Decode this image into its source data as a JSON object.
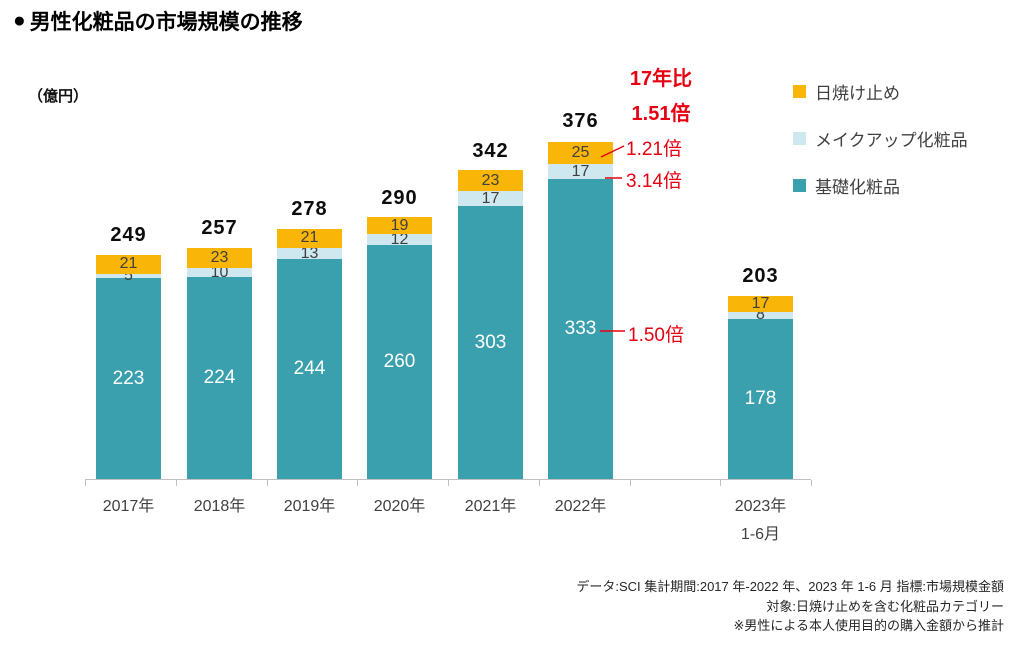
{
  "header": {
    "bullet": "●",
    "title": "男性化粧品の市場規模の推移"
  },
  "chart_data": {
    "type": "bar",
    "stacked": true,
    "title": "男性化粧品の市場規模の推移",
    "unit_label": "（億円）",
    "ylabel": "億円",
    "ylim": [
      0,
      376
    ],
    "grid": false,
    "legend_position": "right",
    "categories": [
      "2017年",
      "2018年",
      "2019年",
      "2020年",
      "2021年",
      "2022年",
      "2023年"
    ],
    "category_sublabels": [
      "",
      "",
      "",
      "",
      "",
      "",
      "1-6月"
    ],
    "series": [
      {
        "key": "base",
        "name": "基礎化粧品",
        "color": "#3aa0ad",
        "values": [
          223,
          224,
          244,
          260,
          303,
          333,
          178
        ]
      },
      {
        "key": "makeup",
        "name": "メイクアップ化粧品",
        "color": "#cfe7ee",
        "values": [
          5,
          10,
          13,
          12,
          17,
          17,
          8
        ]
      },
      {
        "key": "sunscreen",
        "name": "日焼け止め",
        "color": "#f9b508",
        "values": [
          21,
          23,
          21,
          19,
          23,
          25,
          17
        ]
      }
    ],
    "totals": [
      249,
      257,
      278,
      290,
      342,
      376,
      203
    ],
    "legend": [
      {
        "label": "日焼け止め",
        "color": "#f9b508"
      },
      {
        "label": "メイクアップ化粧品",
        "color": "#cfe7ee"
      },
      {
        "label": "基礎化粧品",
        "color": "#3aa0ad"
      }
    ]
  },
  "annotations": {
    "color": "#e60012",
    "headline_line1": "17年比",
    "headline_line2": "1.51倍",
    "sunscreen_ratio": "1.21倍",
    "makeup_ratio": "3.14倍",
    "base_ratio": "1.50倍"
  },
  "footer": {
    "line1": "データ:SCI 集計期間:2017 年-2022 年、2023 年 1-6 月 指標:市場規模金額",
    "line2": "対象:日焼け止めを含む化粧品カテゴリー",
    "line3": "※男性による本人使用目的の購入金額から推計"
  }
}
